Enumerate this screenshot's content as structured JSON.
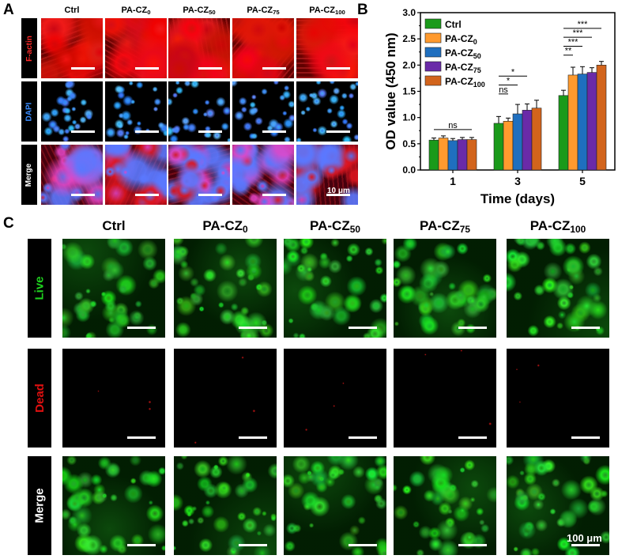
{
  "panel_a": {
    "letter": "A",
    "columns": [
      {
        "main": "Ctrl",
        "sub": ""
      },
      {
        "main": "PA-CZ",
        "sub": "0"
      },
      {
        "main": "PA-CZ",
        "sub": "50"
      },
      {
        "main": "PA-CZ",
        "sub": "75"
      },
      {
        "main": "PA-CZ",
        "sub": "100"
      }
    ],
    "rows": [
      "F-actin",
      "DAPI",
      "Merge"
    ],
    "row_colors": [
      "#ff2a2a",
      "#3a8cff",
      "#ffffff"
    ],
    "scale_bar_label": "10 μm"
  },
  "panel_b": {
    "letter": "B"
  },
  "panel_c": {
    "letter": "C",
    "columns": [
      {
        "main": "Ctrl",
        "sub": ""
      },
      {
        "main": "PA-CZ",
        "sub": "0"
      },
      {
        "main": "PA-CZ",
        "sub": "50"
      },
      {
        "main": "PA-CZ",
        "sub": "75"
      },
      {
        "main": "PA-CZ",
        "sub": "100"
      }
    ],
    "rows": [
      "Live",
      "Dead",
      "Merge"
    ],
    "row_colors": [
      "#1fd11f",
      "#e01010",
      "#ffffff"
    ],
    "scale_bar_label": "100 μm"
  },
  "chart_data": {
    "type": "bar",
    "categories": [
      "1",
      "3",
      "5"
    ],
    "xlabel": "Time (days)",
    "ylabel": "OD value (450 nm)",
    "ylim": [
      0.0,
      3.0
    ],
    "yticks": [
      "0.0",
      "0.5",
      "1.0",
      "1.5",
      "2.0",
      "2.5",
      "3.0"
    ],
    "legend_position": "top-left",
    "series": [
      {
        "name": "Ctrl",
        "sub": "",
        "color": "#1a9a1a",
        "values": [
          0.57,
          0.89,
          1.42
        ],
        "errors": [
          0.04,
          0.13,
          0.1
        ]
      },
      {
        "name": "PA-CZ",
        "sub": "0",
        "color": "#ff9a2e",
        "values": [
          0.61,
          0.93,
          1.81
        ],
        "errors": [
          0.04,
          0.06,
          0.15
        ]
      },
      {
        "name": "PA-CZ",
        "sub": "50",
        "color": "#1f6fbf",
        "values": [
          0.56,
          1.07,
          1.83
        ],
        "errors": [
          0.04,
          0.18,
          0.14
        ]
      },
      {
        "name": "PA-CZ",
        "sub": "75",
        "color": "#6a2aa8",
        "values": [
          0.58,
          1.14,
          1.86
        ],
        "errors": [
          0.04,
          0.12,
          0.09
        ]
      },
      {
        "name": "PA-CZ",
        "sub": "100",
        "color": "#d2641c",
        "values": [
          0.58,
          1.18,
          2.0
        ],
        "errors": [
          0.04,
          0.15,
          0.07
        ]
      }
    ],
    "significance": [
      {
        "category": "1",
        "labels": [
          "ns"
        ]
      },
      {
        "category": "3",
        "labels": [
          "*",
          "*",
          "ns"
        ]
      },
      {
        "category": "5",
        "labels": [
          "***",
          "***",
          "***",
          "**"
        ]
      }
    ]
  }
}
